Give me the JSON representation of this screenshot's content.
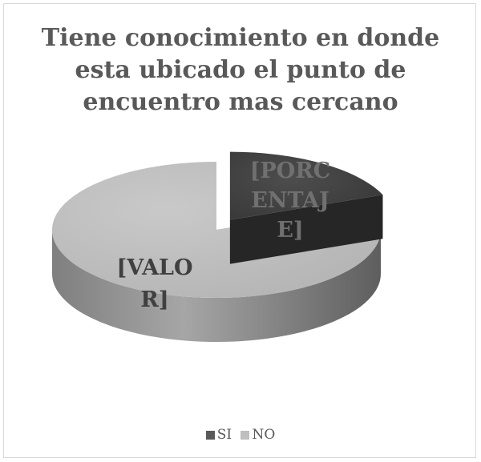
{
  "chart_data": {
    "type": "pie",
    "title": "Tiene conocimiento en donde esta ubicado el punto de encuentro mas cercano",
    "title_lines": [
      "Tiene conocimiento en donde",
      "esta ubicado el punto de",
      "encuentro mas cercano"
    ],
    "three_d": true,
    "categories": [
      "SI",
      "NO"
    ],
    "values": [
      19,
      81
    ],
    "colors": [
      "#595959",
      "#bfbfbf"
    ],
    "data_labels": [
      {
        "category": "SI",
        "lines": [
          "[PORC",
          "ENTAJ",
          "E]"
        ]
      },
      {
        "category": "NO",
        "lines": [
          "[VALO",
          "R]"
        ]
      }
    ],
    "legend": {
      "position": "bottom",
      "entries": [
        "SI",
        "NO"
      ]
    }
  }
}
